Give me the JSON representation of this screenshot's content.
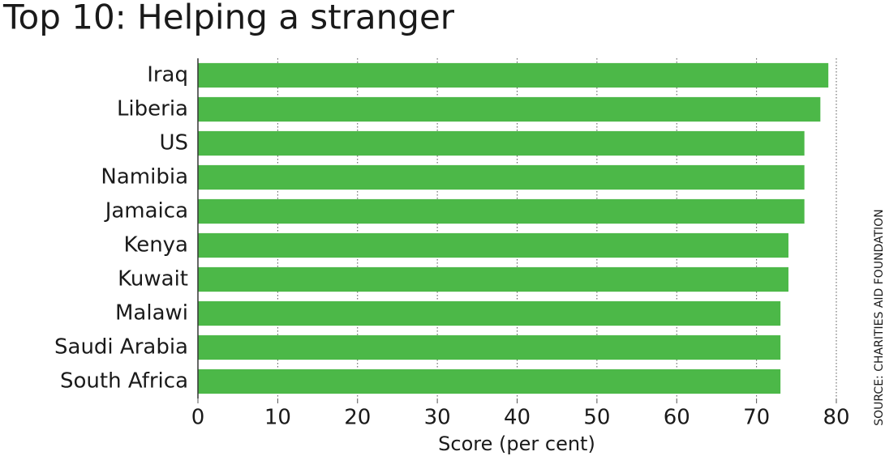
{
  "chart_data": {
    "type": "bar",
    "orientation": "horizontal",
    "title": "Top 10: Helping a stranger",
    "categories": [
      "Iraq",
      "Liberia",
      "US",
      "Namibia",
      "Jamaica",
      "Kenya",
      "Kuwait",
      "Malawi",
      "Saudi Arabia",
      "South Africa"
    ],
    "values": [
      79,
      78,
      76,
      76,
      76,
      74,
      74,
      73,
      73,
      73
    ],
    "color": "#4cb848",
    "x_label": "Score (per cent)",
    "source": "SOURCE: CHARITIES AID FOUNDATION",
    "xlim": [
      0,
      80
    ],
    "xticks": [
      0,
      10,
      20,
      30,
      40,
      50,
      60,
      70,
      80
    ],
    "grid": true
  }
}
